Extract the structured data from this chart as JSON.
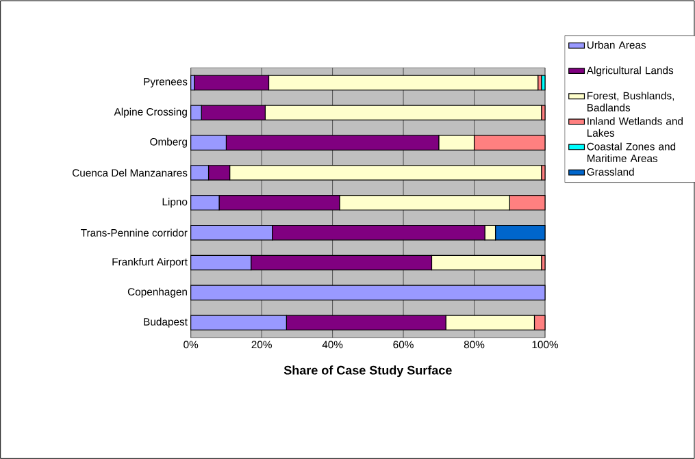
{
  "chart_data": {
    "type": "bar",
    "orientation": "horizontal",
    "stacked": true,
    "xlabel": "Share of  Case Study Surface",
    "categories": [
      "Pyrenees",
      "Alpine Crossing",
      "Omberg",
      "Cuenca Del Manzanares",
      "Lipno",
      "Trans-Pennine corridor",
      "Frankfurt Airport",
      "Copenhagen",
      "Budapest"
    ],
    "series": [
      {
        "name": "Urban Areas",
        "color": "#9999ff",
        "values": [
          1,
          3,
          10,
          5,
          8,
          23,
          17,
          100,
          27
        ]
      },
      {
        "name": "Algricultural Lands",
        "color": "#800080",
        "values": [
          21,
          18,
          60,
          6,
          34,
          60,
          51,
          0,
          45
        ]
      },
      {
        "name": "Forest, Bushlands, Badlands",
        "color": "#ffffcc",
        "values": [
          76,
          78,
          10,
          88,
          48,
          3,
          31,
          0,
          25
        ]
      },
      {
        "name": "Inland Wetlands and Lakes",
        "color": "#ff8080",
        "values": [
          1,
          1,
          20,
          1,
          10,
          0,
          1,
          0,
          3
        ]
      },
      {
        "name": "Coastal Zones and Maritime Areas",
        "color": "#00ffff",
        "values": [
          1,
          0,
          0,
          0,
          0,
          0,
          0,
          0,
          0
        ]
      },
      {
        "name": "Grassland",
        "color": "#0066cc",
        "values": [
          0,
          0,
          0,
          0,
          0,
          14,
          0,
          0,
          0
        ]
      }
    ],
    "xlim": [
      0,
      100
    ],
    "xticks": [
      {
        "value": 0,
        "label": "0%"
      },
      {
        "value": 20,
        "label": "20%"
      },
      {
        "value": 40,
        "label": "40%"
      },
      {
        "value": 60,
        "label": "60%"
      },
      {
        "value": 80,
        "label": "80%"
      },
      {
        "value": 100,
        "label": "100%"
      }
    ],
    "grid": "x",
    "legend": "right"
  }
}
